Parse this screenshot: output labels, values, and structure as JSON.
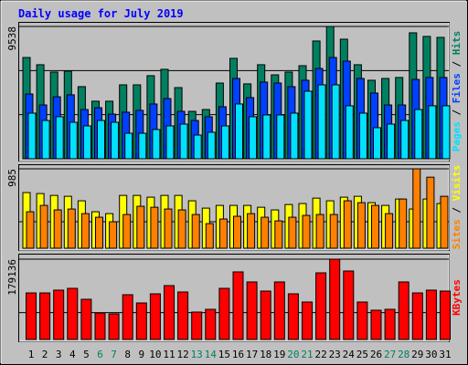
{
  "chart_data": [
    {
      "type": "bar",
      "title": "Daily usage for July 2019",
      "ylim": [
        0,
        9538
      ],
      "yticks": [
        9538
      ],
      "ygrid": [
        3179,
        6359
      ],
      "legend_separator": " / ",
      "series": [
        {
          "name": "Hits",
          "color": "#008060",
          "values": [
            7300,
            6780,
            6250,
            6320,
            5200,
            4150,
            4150,
            5330,
            5330,
            5990,
            6450,
            5130,
            3420,
            3550,
            5460,
            7240,
            5400,
            6780,
            6050,
            6250,
            6710,
            8490,
            9538,
            8620,
            6780,
            5660,
            5790,
            5860,
            9080,
            8820,
            8750
          ]
        },
        {
          "name": "Files",
          "color": "#0040ff",
          "values": [
            4670,
            3880,
            4470,
            4610,
            3550,
            3680,
            3220,
            3360,
            3490,
            3950,
            4340,
            3420,
            2760,
            3030,
            3750,
            5790,
            4410,
            5530,
            5460,
            5200,
            5660,
            6510,
            7300,
            7040,
            5790,
            4740,
            3880,
            3880,
            5720,
            5860,
            5860
          ]
        },
        {
          "name": "Pages",
          "color": "#00e0ff",
          "values": [
            3290,
            2760,
            3030,
            2630,
            2370,
            2760,
            2630,
            1840,
            1840,
            2110,
            2370,
            2500,
            1710,
            1910,
            2370,
            3950,
            3030,
            3160,
            3160,
            3290,
            4870,
            5330,
            5330,
            3820,
            3290,
            2240,
            2500,
            2760,
            3550,
            3820,
            3820
          ]
        }
      ]
    },
    {
      "type": "bar",
      "ylim": [
        0,
        985
      ],
      "yticks": [
        985
      ],
      "ygrid": [
        328
      ],
      "legend_separator": " / ",
      "series": [
        {
          "name": "Visits",
          "color": "#ffff00",
          "values": [
            690,
            678,
            655,
            644,
            588,
            452,
            429,
            655,
            655,
            633,
            655,
            655,
            588,
            497,
            531,
            531,
            531,
            508,
            475,
            542,
            554,
            621,
            588,
            633,
            644,
            565,
            531,
            610,
            486,
            610,
            554
          ]
        },
        {
          "name": "Sites",
          "color": "#ff8000",
          "values": [
            452,
            531,
            475,
            486,
            429,
            384,
            328,
            418,
            520,
            508,
            486,
            475,
            418,
            305,
            362,
            396,
            429,
            384,
            339,
            384,
            407,
            418,
            418,
            588,
            565,
            531,
            429,
            610,
            985,
            881,
            644
          ]
        }
      ]
    },
    {
      "type": "bar",
      "ylim": [
        0,
        179136
      ],
      "yticks": [
        179136
      ],
      "ygrid": [
        59712
      ],
      "categories": [
        "1",
        "2",
        "3",
        "4",
        "5",
        "6",
        "7",
        "8",
        "9",
        "10",
        "11",
        "12",
        "13",
        "14",
        "15",
        "16",
        "17",
        "18",
        "19",
        "20",
        "21",
        "22",
        "23",
        "24",
        "25",
        "26",
        "27",
        "28",
        "29",
        "30",
        "31"
      ],
      "label_color": "#000000",
      "weekend_color": "#008060",
      "weekends": [
        5,
        6,
        12,
        13,
        19,
        20,
        26,
        27
      ],
      "series": [
        {
          "name": "KBytes",
          "color": "#ff0000",
          "values": [
            103800,
            103800,
            110000,
            114000,
            89600,
            59000,
            57000,
            99800,
            81400,
            101800,
            120100,
            105900,
            61100,
            67200,
            114000,
            150700,
            128300,
            107900,
            128300,
            101800,
            83500,
            148600,
            179136,
            152700,
            83500,
            65200,
            67200,
            128300,
            103800,
            110000,
            107900
          ]
        }
      ]
    }
  ]
}
